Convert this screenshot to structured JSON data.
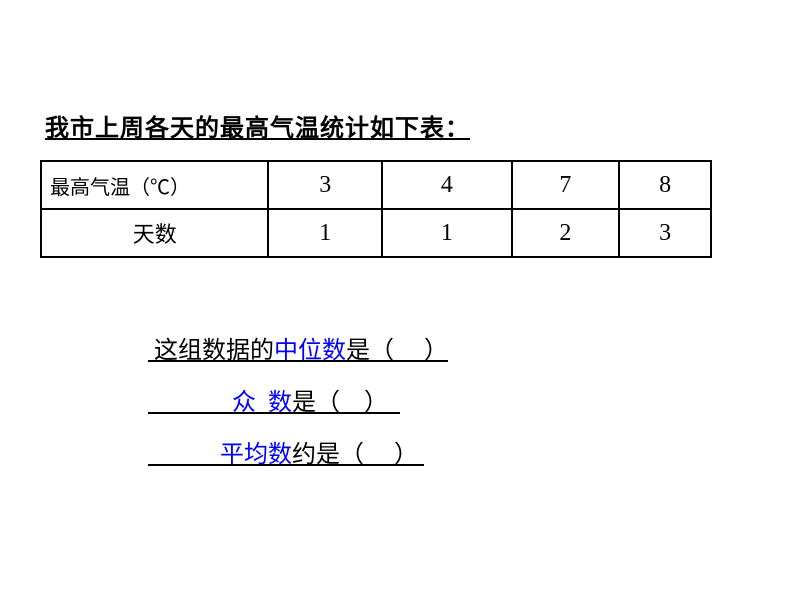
{
  "title": "我市上周各天的最高气温统计如下表：",
  "table": {
    "header_label": "最高气温（℃）",
    "days_label": "天数",
    "temperatures": [
      "3",
      "4",
      "7",
      "8"
    ],
    "day_counts": [
      "1",
      "1",
      "2",
      "3"
    ]
  },
  "questions": {
    "line1_prefix": " 这组数据的",
    "line1_stat": "中位数",
    "line1_suffix": "是（     ）",
    "line2_prefix": "              ",
    "line2_stat": "众  数",
    "line2_suffix": "是（    ）  ",
    "line3_prefix": "            ",
    "line3_stat": "平均数",
    "line3_suffix": "约是（     ） "
  },
  "styling": {
    "background_color": "#ffffff",
    "text_color": "#000000",
    "highlight_color": "#0000ff",
    "border_color": "#000000",
    "title_fontsize": 24,
    "table_fontsize": 24,
    "question_fontsize": 24
  }
}
